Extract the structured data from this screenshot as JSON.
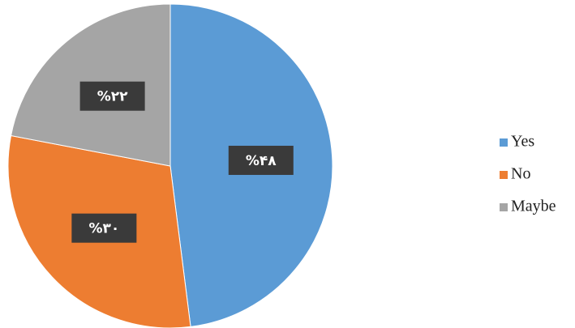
{
  "chart_data": {
    "type": "pie",
    "categories": [
      "Yes",
      "No",
      "Maybe"
    ],
    "values": [
      48,
      30,
      22
    ],
    "value_labels": [
      "%۴۸",
      "%۳۰",
      "%۲۲"
    ],
    "colors": [
      "#5b9bd5",
      "#ed7d31",
      "#a5a5a5"
    ],
    "legend": "right"
  }
}
